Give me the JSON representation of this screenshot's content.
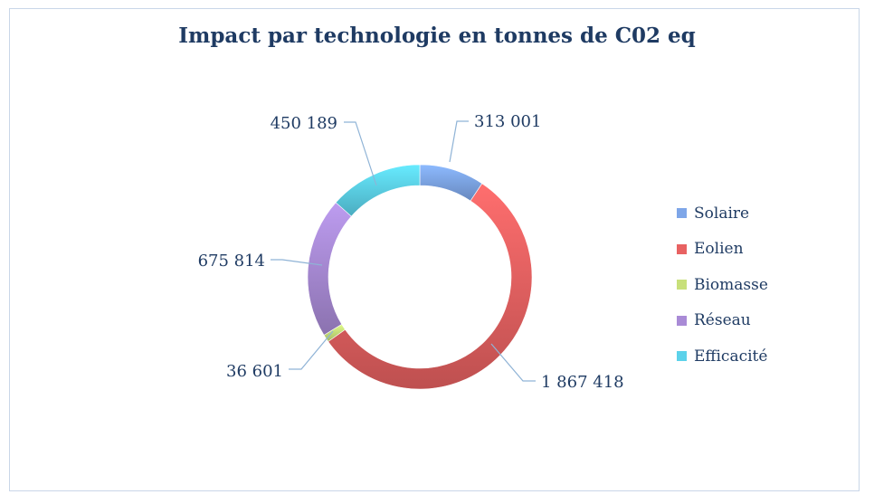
{
  "chart_data": {
    "type": "pie",
    "title": "Impact par technologie en tonnes de C02 eq",
    "categories": [
      "Solaire",
      "Eolien",
      "Biomasse",
      "Réseau",
      "Efficacité"
    ],
    "values": [
      313001,
      1867418,
      36601,
      675814,
      450189
    ],
    "value_labels": [
      "313 001",
      "1 867 418",
      "36 601",
      "675 814",
      "450 189"
    ],
    "colors": [
      "#7ea6e8",
      "#e86262",
      "#c8e07a",
      "#a98bd6",
      "#5cd2ea"
    ],
    "donut": true,
    "legend_position": "right"
  }
}
